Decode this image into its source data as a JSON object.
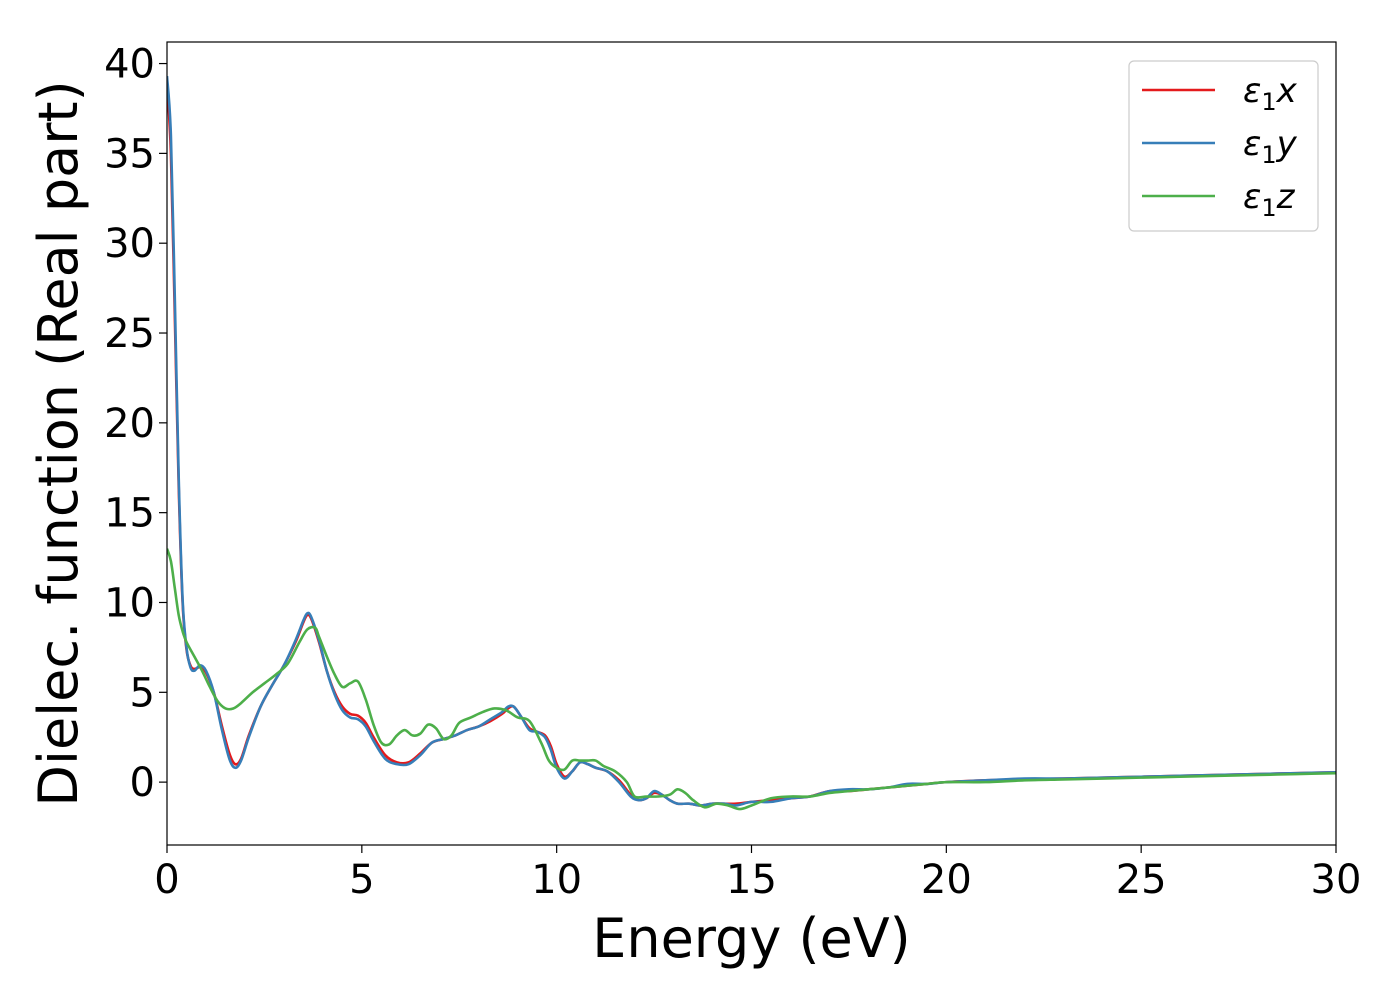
{
  "chart_data": {
    "type": "line",
    "xlabel": "Energy (eV)",
    "ylabel": "Dielec. function (Real part)",
    "xlim": [
      0,
      30
    ],
    "ylim": [
      -3.5,
      41.2
    ],
    "xticks": [
      0,
      5,
      10,
      15,
      20,
      25,
      30
    ],
    "yticks": [
      0,
      5,
      10,
      15,
      20,
      25,
      30,
      35,
      40
    ],
    "grid": false,
    "legend_position": "top-right",
    "series": [
      {
        "name": "ε1x",
        "label_main": "ε",
        "label_sub": "1",
        "label_tail": "x",
        "color": "#e41a1c",
        "x": [
          0,
          0.1,
          0.2,
          0.3,
          0.4,
          0.5,
          0.6,
          0.7,
          0.85,
          1.0,
          1.2,
          1.4,
          1.6,
          1.75,
          1.9,
          2.1,
          2.4,
          2.7,
          3.0,
          3.3,
          3.5,
          3.6,
          3.7,
          3.9,
          4.1,
          4.3,
          4.5,
          4.7,
          4.9,
          5.1,
          5.3,
          5.6,
          5.9,
          6.2,
          6.5,
          6.8,
          7.1,
          7.4,
          7.7,
          8.0,
          8.3,
          8.6,
          8.75,
          8.9,
          9.1,
          9.3,
          9.5,
          9.7,
          9.85,
          10.0,
          10.2,
          10.4,
          10.6,
          10.8,
          11.0,
          11.3,
          11.6,
          11.9,
          12.1,
          12.3,
          12.5,
          12.7,
          12.9,
          13.1,
          13.4,
          13.7,
          14.0,
          14.3,
          14.6,
          15.0,
          15.5,
          16.0,
          16.5,
          17.0,
          17.5,
          18.0,
          18.5,
          19.0,
          19.5,
          20.0,
          21.0,
          22.0,
          23.0,
          24.0,
          25.0,
          26.0,
          27.0,
          28.0,
          29.0,
          30.0
        ],
        "y": [
          38.8,
          35.0,
          26.0,
          16.5,
          10.0,
          7.4,
          6.5,
          6.3,
          6.4,
          6.1,
          5.0,
          3.2,
          1.6,
          1.0,
          1.3,
          2.6,
          4.2,
          5.4,
          6.5,
          7.8,
          8.9,
          9.3,
          9.1,
          7.8,
          6.2,
          5.0,
          4.2,
          3.8,
          3.7,
          3.3,
          2.5,
          1.5,
          1.1,
          1.1,
          1.6,
          2.2,
          2.4,
          2.6,
          2.9,
          3.1,
          3.4,
          3.8,
          4.1,
          4.2,
          3.6,
          3.0,
          2.8,
          2.6,
          2.0,
          1.0,
          0.3,
          0.6,
          1.1,
          1.0,
          0.8,
          0.6,
          0.1,
          -0.7,
          -1.0,
          -0.9,
          -0.6,
          -0.7,
          -1.0,
          -1.2,
          -1.2,
          -1.3,
          -1.2,
          -1.2,
          -1.2,
          -1.1,
          -1.0,
          -0.9,
          -0.8,
          -0.5,
          -0.5,
          -0.4,
          -0.3,
          -0.2,
          -0.1,
          0.0,
          0.1,
          0.15,
          0.2,
          0.25,
          0.3,
          0.35,
          0.4,
          0.45,
          0.5,
          0.55
        ]
      },
      {
        "name": "ε1y",
        "label_main": "ε",
        "label_sub": "1",
        "label_tail": "y",
        "color": "#377eb8",
        "x": [
          0,
          0.1,
          0.2,
          0.3,
          0.4,
          0.5,
          0.6,
          0.7,
          0.85,
          1.0,
          1.2,
          1.4,
          1.6,
          1.75,
          1.9,
          2.1,
          2.4,
          2.7,
          3.0,
          3.3,
          3.5,
          3.6,
          3.7,
          3.9,
          4.1,
          4.3,
          4.5,
          4.7,
          4.9,
          5.1,
          5.3,
          5.6,
          5.9,
          6.2,
          6.5,
          6.8,
          7.1,
          7.4,
          7.7,
          8.0,
          8.3,
          8.6,
          8.75,
          8.9,
          9.1,
          9.3,
          9.5,
          9.7,
          9.85,
          10.0,
          10.2,
          10.4,
          10.6,
          10.8,
          11.0,
          11.3,
          11.6,
          11.9,
          12.1,
          12.3,
          12.5,
          12.7,
          12.9,
          13.1,
          13.4,
          13.7,
          14.0,
          14.3,
          14.6,
          15.0,
          15.5,
          16.0,
          16.5,
          17.0,
          17.5,
          18.0,
          18.5,
          19.0,
          19.5,
          20.0,
          21.0,
          22.0,
          23.0,
          24.0,
          25.0,
          26.0,
          27.0,
          28.0,
          29.0,
          30.0
        ],
        "y": [
          39.3,
          36.0,
          27.0,
          17.0,
          10.2,
          7.5,
          6.4,
          6.2,
          6.5,
          6.2,
          5.0,
          3.0,
          1.3,
          0.8,
          1.2,
          2.5,
          4.2,
          5.4,
          6.5,
          7.9,
          9.0,
          9.4,
          9.2,
          7.9,
          6.2,
          4.9,
          4.0,
          3.6,
          3.5,
          3.1,
          2.3,
          1.3,
          1.0,
          1.0,
          1.5,
          2.2,
          2.4,
          2.6,
          2.9,
          3.1,
          3.5,
          3.9,
          4.2,
          4.2,
          3.6,
          2.9,
          2.8,
          2.5,
          1.8,
          0.8,
          0.2,
          0.6,
          1.1,
          1.0,
          0.8,
          0.6,
          0.0,
          -0.8,
          -1.0,
          -0.9,
          -0.5,
          -0.7,
          -1.0,
          -1.2,
          -1.2,
          -1.3,
          -1.2,
          -1.2,
          -1.3,
          -1.1,
          -1.1,
          -0.9,
          -0.8,
          -0.5,
          -0.4,
          -0.4,
          -0.3,
          -0.1,
          -0.1,
          0.0,
          0.1,
          0.2,
          0.2,
          0.25,
          0.3,
          0.35,
          0.4,
          0.45,
          0.5,
          0.55
        ]
      },
      {
        "name": "ε1z",
        "label_main": "ε",
        "label_sub": "1",
        "label_tail": "z",
        "color": "#4daf4a",
        "x": [
          0,
          0.1,
          0.2,
          0.3,
          0.4,
          0.5,
          0.7,
          0.9,
          1.1,
          1.3,
          1.5,
          1.7,
          1.9,
          2.2,
          2.5,
          2.8,
          3.1,
          3.4,
          3.6,
          3.8,
          3.9,
          4.1,
          4.3,
          4.5,
          4.7,
          4.9,
          5.1,
          5.3,
          5.5,
          5.7,
          5.9,
          6.1,
          6.3,
          6.5,
          6.7,
          6.9,
          7.1,
          7.3,
          7.5,
          7.8,
          8.1,
          8.4,
          8.7,
          9.0,
          9.3,
          9.6,
          9.8,
          10.0,
          10.2,
          10.4,
          10.6,
          10.8,
          11.0,
          11.2,
          11.5,
          11.8,
          12.0,
          12.3,
          12.6,
          12.9,
          13.1,
          13.3,
          13.5,
          13.8,
          14.1,
          14.4,
          14.7,
          15.0,
          15.5,
          16.0,
          16.5,
          17.0,
          17.5,
          18.0,
          18.5,
          19.0,
          19.5,
          20.0,
          21.0,
          22.0,
          23.0,
          24.0,
          25.0,
          26.0,
          27.0,
          28.0,
          29.0,
          30.0
        ],
        "y": [
          13.0,
          12.3,
          10.8,
          9.3,
          8.4,
          7.8,
          7.0,
          6.2,
          5.3,
          4.5,
          4.1,
          4.1,
          4.4,
          5.0,
          5.5,
          6.0,
          6.6,
          7.8,
          8.5,
          8.6,
          8.1,
          7.0,
          6.0,
          5.3,
          5.5,
          5.6,
          4.6,
          3.2,
          2.2,
          2.1,
          2.6,
          2.9,
          2.6,
          2.7,
          3.2,
          3.0,
          2.4,
          2.6,
          3.3,
          3.6,
          3.9,
          4.1,
          4.0,
          3.6,
          3.4,
          2.2,
          1.2,
          0.8,
          0.7,
          1.2,
          1.2,
          1.2,
          1.2,
          0.9,
          0.6,
          0.0,
          -0.8,
          -0.8,
          -0.8,
          -0.7,
          -0.4,
          -0.6,
          -1.0,
          -1.4,
          -1.2,
          -1.3,
          -1.5,
          -1.3,
          -0.9,
          -0.8,
          -0.8,
          -0.6,
          -0.5,
          -0.4,
          -0.3,
          -0.2,
          -0.1,
          0.0,
          0.0,
          0.1,
          0.15,
          0.2,
          0.25,
          0.3,
          0.35,
          0.4,
          0.45,
          0.5
        ]
      }
    ]
  }
}
